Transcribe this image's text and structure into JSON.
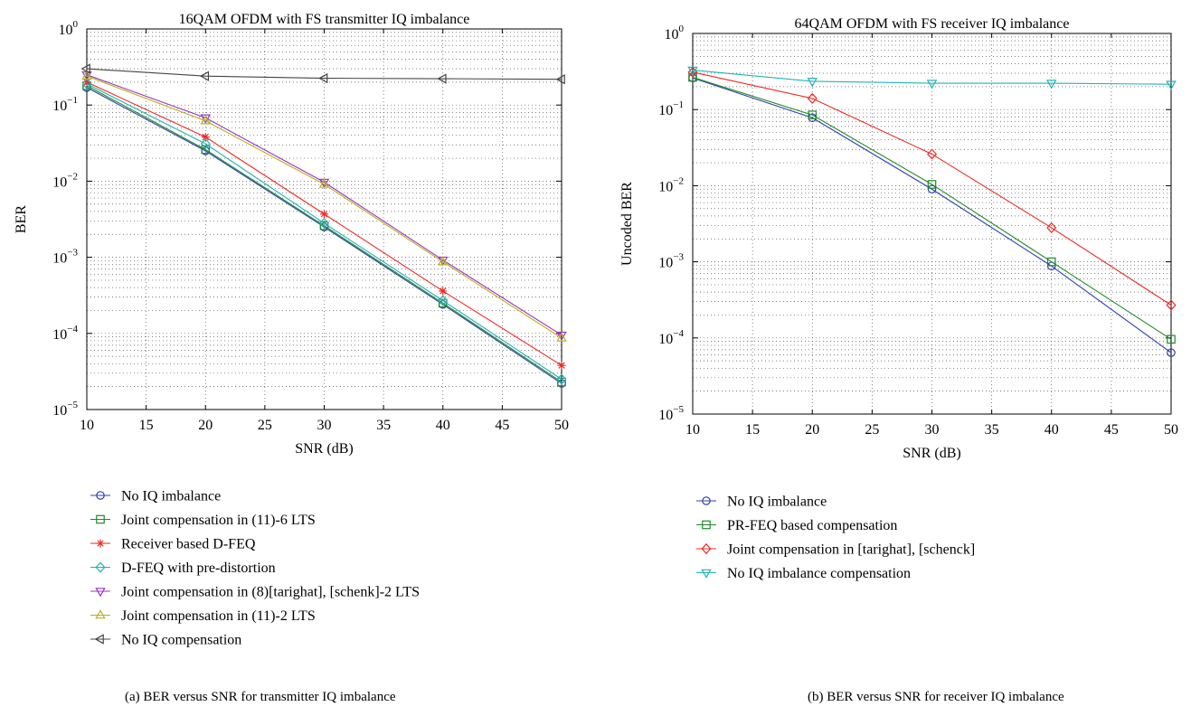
{
  "chart_data": [
    {
      "type": "line",
      "panel": "(a)",
      "title": "16QAM OFDM with FS transmitter IQ imbalance",
      "xlabel": "SNR (dB)",
      "ylabel": "BER",
      "yscale": "log",
      "xlim": [
        10,
        50
      ],
      "ylim_exp": [
        -5,
        0
      ],
      "xticks": [
        10,
        15,
        20,
        25,
        30,
        35,
        40,
        45,
        50
      ],
      "yticks_exp": [
        -5,
        -4,
        -3,
        -2,
        -1,
        0
      ],
      "grid": true,
      "legend_position": "below",
      "caption": "(a)  BER versus SNR for transmitter IQ imbalance",
      "x": [
        10,
        20,
        30,
        40,
        50
      ],
      "series": [
        {
          "name": "No IQ imbalance",
          "color": "#2e3fb0",
          "marker": "circle",
          "values": [
            0.17,
            0.025,
            0.0025,
            0.00024,
            2.2e-05
          ]
        },
        {
          "name": "Joint compensation in (11)-6 LTS",
          "color": "#1f8a2a",
          "marker": "square",
          "values": [
            0.18,
            0.026,
            0.0026,
            0.00025,
            2.3e-05
          ]
        },
        {
          "name": "Receiver based D-FEQ",
          "color": "#ee2a24",
          "marker": "star",
          "values": [
            0.2,
            0.038,
            0.0037,
            0.00036,
            3.8e-05
          ]
        },
        {
          "name": "D-FEQ with pre-distortion",
          "color": "#22b3b3",
          "marker": "diamond",
          "values": [
            0.19,
            0.031,
            0.0028,
            0.00027,
            2.5e-05
          ]
        },
        {
          "name": "Joint compensation in (8)[tarighat], [schenk]-2 LTS",
          "color": "#9a34c4",
          "marker": "triangle-down",
          "values": [
            0.25,
            0.068,
            0.0097,
            0.00092,
            9.5e-05
          ]
        },
        {
          "name": "Joint compensation in (11)-2 LTS",
          "color": "#b8b020",
          "marker": "triangle-up",
          "values": [
            0.24,
            0.062,
            0.0091,
            0.00087,
            8.7e-05
          ]
        },
        {
          "name": "No IQ compensation",
          "color": "#444444",
          "marker": "triangle-left",
          "values": [
            0.3,
            0.24,
            0.225,
            0.222,
            0.218
          ]
        }
      ]
    },
    {
      "type": "line",
      "panel": "(b)",
      "title": "64QAM OFDM with FS receiver IQ imbalance",
      "xlabel": "SNR (dB)",
      "ylabel": "Uncoded BER",
      "yscale": "log",
      "xlim": [
        10,
        50
      ],
      "ylim_exp": [
        -5,
        0
      ],
      "xticks": [
        10,
        15,
        20,
        25,
        30,
        35,
        40,
        45,
        50
      ],
      "yticks_exp": [
        -5,
        -4,
        -3,
        -2,
        -1,
        0
      ],
      "grid": true,
      "legend_position": "below",
      "caption": "(b)  BER versus SNR for receiver IQ imbalance",
      "x": [
        10,
        20,
        30,
        40,
        50
      ],
      "series": [
        {
          "name": "No IQ imbalance",
          "color": "#2e3fb0",
          "marker": "circle",
          "values": [
            0.26,
            0.078,
            0.009,
            0.00088,
            6.4e-05
          ]
        },
        {
          "name": "PR-FEQ based compensation",
          "color": "#1f8a2a",
          "marker": "square",
          "values": [
            0.265,
            0.085,
            0.0104,
            0.001,
            9.6e-05
          ]
        },
        {
          "name": "Joint compensation in [tarighat], [schenck]",
          "color": "#ee2a24",
          "marker": "diamond",
          "values": [
            0.31,
            0.14,
            0.026,
            0.0028,
            0.00027
          ]
        },
        {
          "name": "No IQ imbalance compensation",
          "color": "#22b3b3",
          "marker": "triangle-down",
          "values": [
            0.33,
            0.235,
            0.222,
            0.222,
            0.215
          ]
        }
      ]
    }
  ]
}
